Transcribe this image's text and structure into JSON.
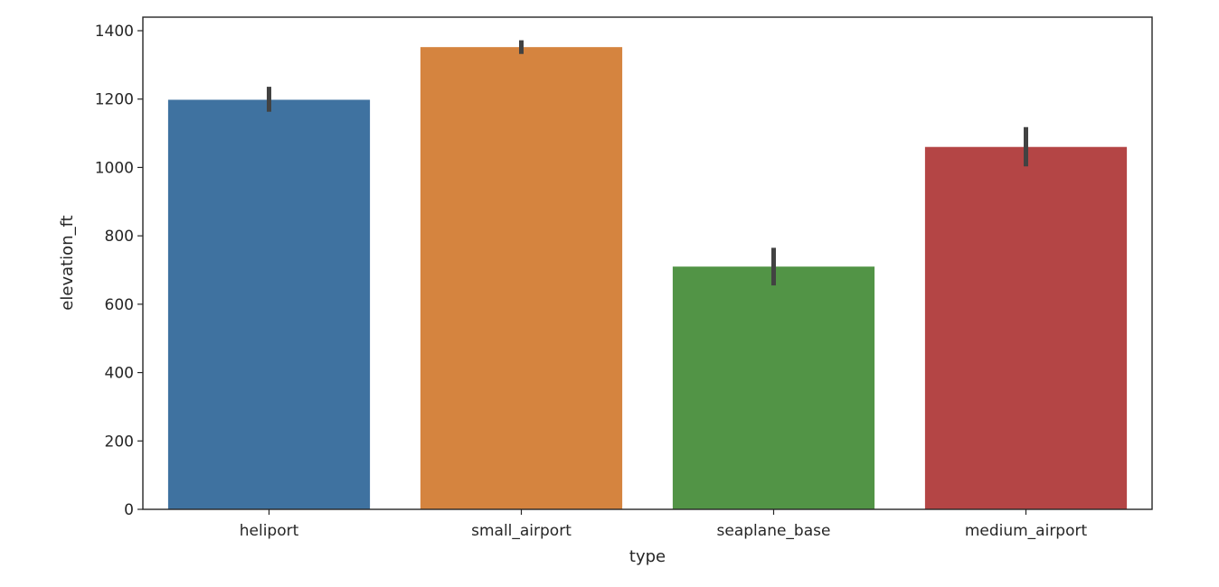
{
  "chart_data": {
    "type": "bar",
    "xlabel": "type",
    "ylabel": "elevation_ft",
    "categories": [
      "heliport",
      "small_airport",
      "seaplane_base",
      "medium_airport"
    ],
    "values": [
      1198,
      1352,
      710,
      1060
    ],
    "error_bars": [
      {
        "low": 1163,
        "high": 1236
      },
      {
        "low": 1332,
        "high": 1372
      },
      {
        "low": 655,
        "high": 765
      },
      {
        "low": 1003,
        "high": 1118
      }
    ],
    "colors": [
      "#3f72a0",
      "#d5843f",
      "#529446",
      "#b44545"
    ],
    "ylim": [
      0,
      1400
    ],
    "yticks": [
      0,
      200,
      400,
      600,
      800,
      1000,
      1200,
      1400
    ],
    "ytick_labels": [
      "0",
      "200",
      "400",
      "600",
      "800",
      "1000",
      "1200",
      "1400"
    ],
    "grid": false,
    "legend": "none"
  }
}
